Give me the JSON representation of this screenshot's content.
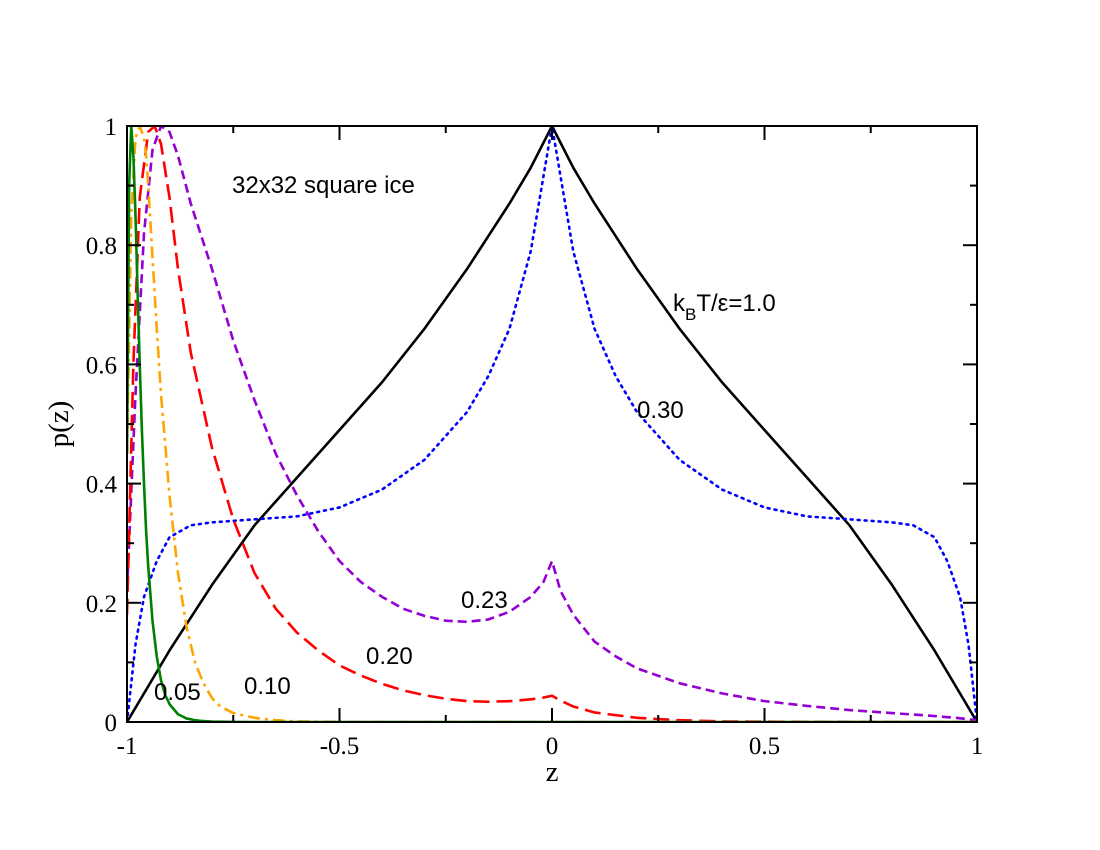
{
  "chart_data": {
    "type": "line",
    "title": "",
    "xlabel": "z",
    "ylabel": "p(z)",
    "xlim": [
      -1,
      1
    ],
    "ylim": [
      0,
      1
    ],
    "xticks": [
      -1,
      -0.5,
      0,
      0.5,
      1
    ],
    "xtick_labels": [
      "-1",
      "-0.5",
      "0",
      "0.5",
      "1"
    ],
    "yticks": [
      0,
      0.2,
      0.4,
      0.6,
      0.8,
      1
    ],
    "ytick_labels": [
      "0",
      "0.2",
      "0.4",
      "0.6",
      "0.8",
      "1"
    ],
    "grid": false,
    "legend": "none",
    "annotations": {
      "system": "32x32 square ice",
      "temp_label_main": "k",
      "temp_label_sub": "B",
      "temp_label_rest": "T/ε=1.0",
      "t030": "0.30",
      "t023": "0.23",
      "t020": "0.20",
      "t010": "0.10",
      "t005": "0.05"
    },
    "series": [
      {
        "name": "1.0",
        "color": "#000000",
        "style": "solid",
        "x": [
          -1,
          -0.95,
          -0.9,
          -0.8,
          -0.7,
          -0.6,
          -0.5,
          -0.4,
          -0.3,
          -0.2,
          -0.1,
          -0.05,
          0,
          0.05,
          0.1,
          0.2,
          0.3,
          0.4,
          0.5,
          0.6,
          0.7,
          0.8,
          0.9,
          0.95,
          1
        ],
        "y": [
          0.0,
          0.06,
          0.12,
          0.23,
          0.33,
          0.41,
          0.49,
          0.57,
          0.66,
          0.76,
          0.87,
          0.93,
          1.0,
          0.93,
          0.87,
          0.76,
          0.66,
          0.57,
          0.49,
          0.41,
          0.33,
          0.23,
          0.12,
          0.06,
          0.0
        ]
      },
      {
        "name": "0.30",
        "color": "#0000ff",
        "style": "dotted",
        "x": [
          -1,
          -0.98,
          -0.96,
          -0.93,
          -0.9,
          -0.85,
          -0.8,
          -0.7,
          -0.6,
          -0.5,
          -0.4,
          -0.3,
          -0.2,
          -0.15,
          -0.1,
          -0.05,
          0,
          0.05,
          0.1,
          0.15,
          0.2,
          0.3,
          0.4,
          0.5,
          0.6,
          0.7,
          0.8,
          0.85,
          0.9,
          0.93,
          0.96,
          0.98,
          1
        ],
        "y": [
          0.0,
          0.13,
          0.21,
          0.27,
          0.31,
          0.33,
          0.335,
          0.34,
          0.345,
          0.36,
          0.39,
          0.44,
          0.52,
          0.58,
          0.66,
          0.79,
          1.0,
          0.79,
          0.66,
          0.58,
          0.52,
          0.44,
          0.39,
          0.36,
          0.345,
          0.34,
          0.335,
          0.33,
          0.31,
          0.27,
          0.21,
          0.13,
          0.0
        ]
      },
      {
        "name": "0.23",
        "color": "#9400d3",
        "style": "dashed",
        "x": [
          -1,
          -0.98,
          -0.96,
          -0.94,
          -0.92,
          -0.9,
          -0.88,
          -0.85,
          -0.8,
          -0.75,
          -0.7,
          -0.65,
          -0.6,
          -0.55,
          -0.5,
          -0.45,
          -0.4,
          -0.35,
          -0.3,
          -0.25,
          -0.2,
          -0.15,
          -0.1,
          -0.05,
          -0.02,
          0,
          0.02,
          0.05,
          0.1,
          0.15,
          0.2,
          0.3,
          0.4,
          0.5,
          0.6,
          0.7,
          0.8,
          0.9,
          0.95,
          1
        ],
        "y": [
          0.22,
          0.55,
          0.82,
          0.96,
          1.0,
          0.99,
          0.95,
          0.87,
          0.76,
          0.64,
          0.54,
          0.45,
          0.38,
          0.32,
          0.27,
          0.235,
          0.21,
          0.19,
          0.178,
          0.17,
          0.168,
          0.172,
          0.185,
          0.21,
          0.235,
          0.27,
          0.22,
          0.18,
          0.135,
          0.11,
          0.09,
          0.065,
          0.048,
          0.035,
          0.027,
          0.02,
          0.015,
          0.01,
          0.007,
          0.003
        ]
      },
      {
        "name": "0.20",
        "color": "#ff0000",
        "style": "longdash",
        "x": [
          -1,
          -0.985,
          -0.97,
          -0.95,
          -0.935,
          -0.92,
          -0.9,
          -0.88,
          -0.85,
          -0.8,
          -0.75,
          -0.7,
          -0.65,
          -0.6,
          -0.55,
          -0.5,
          -0.45,
          -0.4,
          -0.35,
          -0.3,
          -0.25,
          -0.2,
          -0.15,
          -0.1,
          -0.05,
          -0.02,
          0,
          0.02,
          0.05,
          0.1,
          0.2,
          0.3,
          0.4,
          0.5,
          0.7,
          1
        ],
        "y": [
          0.18,
          0.6,
          0.88,
          0.99,
          1.0,
          0.97,
          0.88,
          0.76,
          0.62,
          0.46,
          0.34,
          0.25,
          0.19,
          0.15,
          0.12,
          0.095,
          0.078,
          0.064,
          0.053,
          0.045,
          0.039,
          0.035,
          0.034,
          0.035,
          0.038,
          0.041,
          0.044,
          0.036,
          0.026,
          0.016,
          0.007,
          0.003,
          0.001,
          0.0005,
          0.0,
          0.0
        ]
      },
      {
        "name": "0.10",
        "color": "#ffa500",
        "style": "dashdot",
        "x": [
          -1,
          -0.99,
          -0.98,
          -0.97,
          -0.96,
          -0.955,
          -0.95,
          -0.94,
          -0.93,
          -0.92,
          -0.9,
          -0.88,
          -0.86,
          -0.84,
          -0.82,
          -0.8,
          -0.78,
          -0.75,
          -0.7,
          -0.65,
          -0.6,
          -0.55,
          -0.5,
          0,
          0.5,
          1
        ],
        "y": [
          0.45,
          0.85,
          0.98,
          1.0,
          0.98,
          0.95,
          0.9,
          0.78,
          0.66,
          0.55,
          0.38,
          0.25,
          0.16,
          0.1,
          0.065,
          0.04,
          0.026,
          0.015,
          0.007,
          0.003,
          0.001,
          0.0005,
          0.0,
          0.0,
          0.0,
          0.0
        ]
      },
      {
        "name": "0.05",
        "color": "#008000",
        "style": "solid",
        "x": [
          -1,
          -0.995,
          -0.99,
          -0.985,
          -0.98,
          -0.975,
          -0.97,
          -0.965,
          -0.96,
          -0.955,
          -0.95,
          -0.94,
          -0.93,
          -0.92,
          -0.91,
          -0.9,
          -0.88,
          -0.86,
          -0.84,
          -0.82,
          -0.8,
          -0.75,
          -0.7,
          -0.5,
          0,
          0.5,
          1
        ],
        "y": [
          0.45,
          0.9,
          1.0,
          0.95,
          0.85,
          0.72,
          0.6,
          0.49,
          0.4,
          0.32,
          0.26,
          0.17,
          0.11,
          0.07,
          0.045,
          0.03,
          0.013,
          0.006,
          0.003,
          0.0015,
          0.0008,
          0.0002,
          0.0,
          0.0,
          0.0,
          0.0,
          0.0
        ]
      }
    ]
  }
}
